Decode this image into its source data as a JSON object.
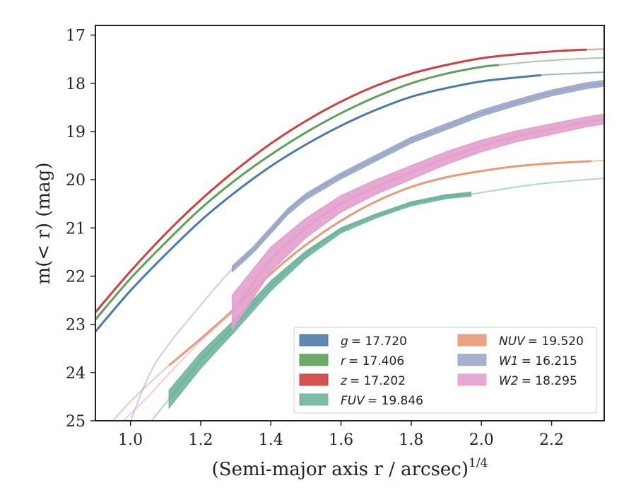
{
  "chart_data": {
    "type": "line",
    "xlabel": "(Semi-major axis r / arcsec)",
    "xlabel_sup": "1/4",
    "ylabel": "m(< r) (mag)",
    "xlim": [
      0.9,
      2.35
    ],
    "ylim": [
      25,
      16.8
    ],
    "y_inverted": true,
    "grid": false,
    "legend_position": "lower-right",
    "legend_columns": 2,
    "xticks": [
      "1.0",
      "1.2",
      "1.4",
      "1.6",
      "1.8",
      "2.0",
      "2.2"
    ],
    "yticks": [
      "17",
      "18",
      "19",
      "20",
      "21",
      "22",
      "23",
      "24",
      "25"
    ],
    "series": [
      {
        "name": "g",
        "legend_label": "= 17.720",
        "color": "#4c7aa8",
        "x": [
          0.9,
          1.0,
          1.1,
          1.2,
          1.3,
          1.4,
          1.5,
          1.6,
          1.7,
          1.8,
          1.9,
          2.0,
          2.1,
          2.17,
          2.25,
          2.35
        ],
        "y": [
          23.15,
          22.3,
          21.55,
          20.85,
          20.25,
          19.72,
          19.27,
          18.88,
          18.55,
          18.28,
          18.1,
          17.96,
          17.88,
          17.83,
          17.8,
          17.77
        ],
        "solid_until": 2.17,
        "band_halfwidth": 0.02
      },
      {
        "name": "r",
        "legend_label": "= 17.406",
        "color": "#5fa05a",
        "x": [
          0.9,
          1.0,
          1.1,
          1.2,
          1.3,
          1.4,
          1.5,
          1.6,
          1.7,
          1.8,
          1.9,
          2.0,
          2.05,
          2.15,
          2.25,
          2.35
        ],
        "y": [
          22.9,
          22.05,
          21.3,
          20.6,
          20.0,
          19.48,
          19.02,
          18.62,
          18.28,
          18.0,
          17.8,
          17.66,
          17.62,
          17.55,
          17.5,
          17.47
        ],
        "solid_until": 2.05,
        "band_halfwidth": 0.02
      },
      {
        "name": "z",
        "legend_label": "= 17.202",
        "color": "#d03f3f",
        "x": [
          0.9,
          1.0,
          1.1,
          1.2,
          1.3,
          1.4,
          1.5,
          1.6,
          1.7,
          1.8,
          1.9,
          2.0,
          2.1,
          2.2,
          2.3,
          2.35
        ],
        "y": [
          22.75,
          21.9,
          21.12,
          20.42,
          19.8,
          19.25,
          18.78,
          18.38,
          18.05,
          17.8,
          17.62,
          17.48,
          17.4,
          17.34,
          17.3,
          17.29
        ],
        "solid_until": 2.3,
        "band_halfwidth": 0.02
      },
      {
        "name": "FUV",
        "legend_label": "= 19.846",
        "color": "#6fb5a0",
        "x": [
          1.06,
          1.11,
          1.2,
          1.3,
          1.4,
          1.5,
          1.6,
          1.7,
          1.8,
          1.9,
          1.97,
          2.1,
          2.2,
          2.35
        ],
        "y": [
          25.0,
          24.55,
          23.75,
          23.0,
          22.2,
          21.55,
          21.05,
          20.75,
          20.5,
          20.35,
          20.3,
          20.15,
          20.06,
          19.97
        ],
        "solid_from": 1.11,
        "solid_until": 1.97,
        "band_halfwidth": [
          0.0,
          0.18,
          0.16,
          0.12,
          0.1,
          0.07,
          0.05,
          0.04,
          0.04,
          0.04,
          0.04,
          0.0,
          0.0,
          0.0
        ]
      },
      {
        "name": "NUV",
        "legend_label": "= 19.520",
        "color": "#e89a76",
        "x": [
          0.95,
          1.0,
          1.05,
          1.11,
          1.2,
          1.3,
          1.4,
          1.5,
          1.6,
          1.7,
          1.8,
          1.9,
          2.0,
          2.1,
          2.2,
          2.3,
          2.35
        ],
        "y": [
          25.0,
          24.6,
          24.25,
          23.85,
          23.3,
          22.65,
          21.95,
          21.35,
          20.85,
          20.45,
          20.15,
          19.95,
          19.82,
          19.72,
          19.66,
          19.62,
          19.6
        ],
        "solid_from": 1.11,
        "solid_until": 2.31,
        "band_halfwidth": 0.03
      },
      {
        "name": "W1",
        "legend_label": "= 16.215",
        "color": "#9ba8c8",
        "x": [
          1.0,
          1.05,
          1.1,
          1.2,
          1.29,
          1.35,
          1.4,
          1.45,
          1.5,
          1.6,
          1.7,
          1.8,
          1.9,
          2.0,
          2.1,
          2.2,
          2.3,
          2.35
        ],
        "y": [
          25.0,
          24.1,
          23.5,
          22.6,
          21.85,
          21.45,
          21.05,
          20.65,
          20.35,
          19.92,
          19.55,
          19.18,
          18.9,
          18.62,
          18.4,
          18.2,
          18.05,
          18.0
        ],
        "solid_from": 1.29,
        "solid_until": 2.35,
        "band_halfwidth": 0.06
      },
      {
        "name": "W2",
        "legend_label": "= 18.295",
        "color": "#e3a0cc",
        "x": [
          0.98,
          1.05,
          1.1,
          1.2,
          1.29,
          1.35,
          1.4,
          1.5,
          1.6,
          1.7,
          1.8,
          1.9,
          2.0,
          2.1,
          2.2,
          2.3,
          2.35
        ],
        "y": [
          25.0,
          24.5,
          24.1,
          23.35,
          22.75,
          22.15,
          21.65,
          21.0,
          20.5,
          20.15,
          19.85,
          19.55,
          19.3,
          19.1,
          18.95,
          18.8,
          18.74
        ],
        "solid_from": 1.29,
        "solid_until": 2.35,
        "band_halfwidth": [
          0.0,
          0.0,
          0.0,
          0.0,
          0.35,
          0.3,
          0.25,
          0.2,
          0.17,
          0.15,
          0.14,
          0.13,
          0.12,
          0.11,
          0.11,
          0.1,
          0.1
        ]
      }
    ]
  }
}
